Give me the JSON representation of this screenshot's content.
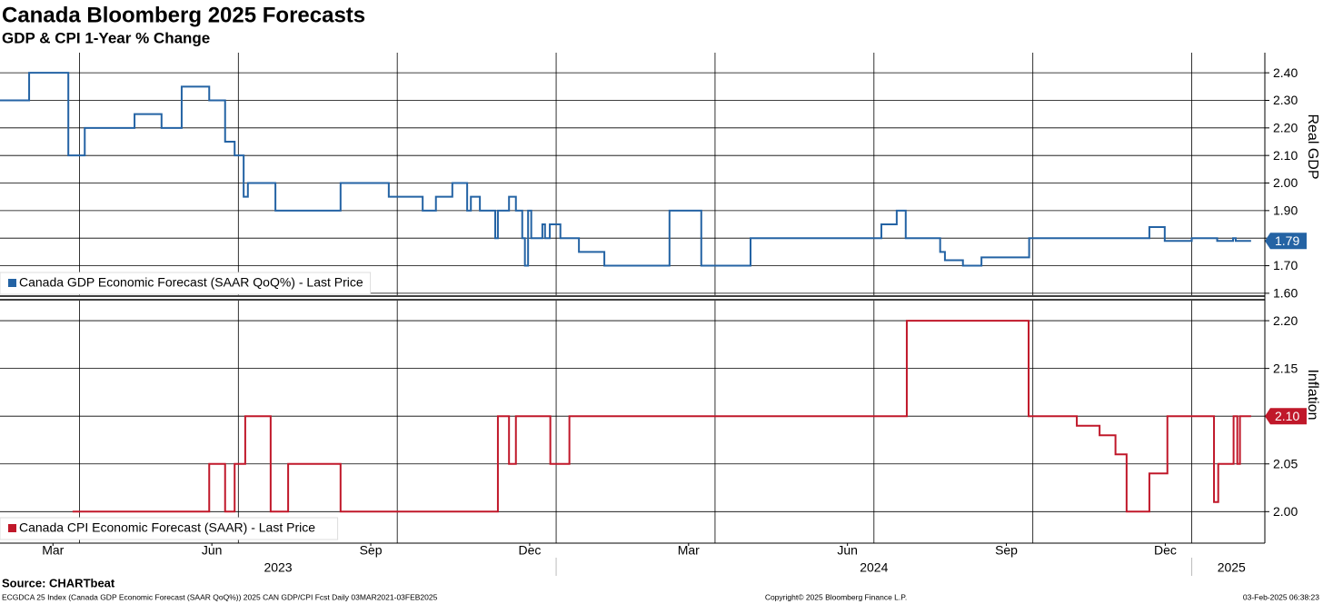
{
  "title": "Canada Bloomberg 2025 Forecasts",
  "subtitle": "GDP & CPI 1-Year % Change",
  "source": "Source: CHARTbeat",
  "footer": {
    "left": "ECGDCA 25 Index (Canada GDP Economic Forecast (SAAR QoQ%)) 2025 CAN GDP/CPI Fcst  Daily 03MAR2021-03FEB2025",
    "center": "Copyright© 2025 Bloomberg Finance L.P.",
    "right": "03-Feb-2025 06:38:23"
  },
  "chart_data": [
    {
      "type": "line",
      "step": "post",
      "y_label": "Real GDP",
      "legend": "lower left",
      "grid": true,
      "xlim": [
        1.5,
        25.38
      ],
      "xgrid": [
        3,
        6,
        9,
        12,
        15,
        18,
        21,
        24
      ],
      "ylim": [
        1.593,
        2.473
      ],
      "yticks": [
        {
          "value": 1.6,
          "label": "1.60"
        },
        {
          "value": 1.7,
          "label": "1.70"
        },
        {
          "value": 1.8,
          "label": "1.80"
        },
        {
          "value": 1.9,
          "label": "1.90"
        },
        {
          "value": 2.0,
          "label": "2.00"
        },
        {
          "value": 2.1,
          "label": "2.10"
        },
        {
          "value": 2.2,
          "label": "2.20"
        },
        {
          "value": 2.3,
          "label": "2.30"
        },
        {
          "value": 2.4,
          "label": "2.40"
        }
      ],
      "series": [
        {
          "name": "Canada GDP Economic Forecast (SAAR QoQ%) - Last Price",
          "color": "#2463a4",
          "last_label": "1.79",
          "x": [
            1.5,
            2.05,
            2.79,
            3.1,
            4.04,
            4.55,
            4.93,
            5.45,
            5.75,
            5.93,
            6.1,
            6.18,
            6.7,
            7.93,
            8.84,
            9.48,
            9.73,
            10.04,
            10.32,
            10.39,
            10.56,
            10.85,
            10.9,
            11.11,
            11.24,
            11.36,
            11.41,
            11.47,
            11.53,
            11.74,
            11.79,
            11.88,
            12.08,
            12.43,
            12.91,
            14.14,
            14.74,
            15.67,
            18.14,
            18.43,
            18.6,
            19.25,
            19.34,
            19.68,
            20.03,
            20.93,
            23.2,
            23.49,
            24.0,
            24.48,
            24.78,
            24.83,
            25.12
          ],
          "values": [
            2.3,
            2.4,
            2.1,
            2.2,
            2.25,
            2.2,
            2.35,
            2.3,
            2.15,
            2.1,
            1.95,
            2.0,
            1.9,
            2.0,
            1.95,
            1.9,
            1.95,
            2.0,
            1.9,
            1.95,
            1.9,
            1.8,
            1.9,
            1.95,
            1.9,
            1.8,
            1.7,
            1.9,
            1.8,
            1.85,
            1.8,
            1.85,
            1.8,
            1.75,
            1.7,
            1.9,
            1.7,
            1.8,
            1.85,
            1.9,
            1.8,
            1.75,
            1.72,
            1.7,
            1.73,
            1.8,
            1.84,
            1.79,
            1.8,
            1.79,
            1.8,
            1.79,
            1.79
          ]
        }
      ]
    },
    {
      "type": "line",
      "step": "post",
      "y_label": "Inflation",
      "legend": "lower left",
      "grid": true,
      "xlim": [
        1.5,
        25.38
      ],
      "xgrid": [
        3,
        6,
        9,
        12,
        15,
        18,
        21,
        24
      ],
      "xticks": [
        {
          "value": 2.5,
          "label": "Mar"
        },
        {
          "value": 5.5,
          "label": "Jun"
        },
        {
          "value": 8.5,
          "label": "Sep"
        },
        {
          "value": 11.5,
          "label": "Dec"
        },
        {
          "value": 14.5,
          "label": "Mar"
        },
        {
          "value": 17.5,
          "label": "Jun"
        },
        {
          "value": 20.5,
          "label": "Sep"
        },
        {
          "value": 23.5,
          "label": "Dec"
        }
      ],
      "year_ticks": [
        {
          "value": 6.75,
          "label": "2023"
        },
        {
          "value": 18,
          "label": "2024"
        },
        {
          "value": 24.75,
          "label": "2025"
        }
      ],
      "year_separators": [
        12,
        24
      ],
      "ylim": [
        1.967,
        2.221
      ],
      "yticks": [
        {
          "value": 2.0,
          "label": "2.00"
        },
        {
          "value": 2.05,
          "label": "2.05"
        },
        {
          "value": 2.1,
          "label": "2.10"
        },
        {
          "value": 2.15,
          "label": "2.15"
        },
        {
          "value": 2.2,
          "label": "2.20"
        }
      ],
      "series": [
        {
          "name": "Canada CPI Economic Forecast (SAAR) - Last Price",
          "color": "#c0182a",
          "last_label": "2.10",
          "x": [
            2.87,
            5.45,
            5.75,
            5.93,
            6.13,
            6.61,
            6.94,
            7.93,
            10.9,
            11.11,
            11.24,
            11.89,
            12.25,
            18.62,
            20.92,
            21.83,
            22.26,
            22.56,
            22.77,
            23.2,
            23.54,
            24.42,
            24.5,
            24.79,
            24.86,
            24.91,
            25.12
          ],
          "values": [
            2.0,
            2.05,
            2.0,
            2.05,
            2.1,
            2.0,
            2.05,
            2.0,
            2.1,
            2.05,
            2.1,
            2.05,
            2.1,
            2.2,
            2.1,
            2.09,
            2.08,
            2.06,
            2.0,
            2.04,
            2.1,
            2.01,
            2.05,
            2.1,
            2.05,
            2.1,
            2.1
          ]
        }
      ]
    }
  ]
}
